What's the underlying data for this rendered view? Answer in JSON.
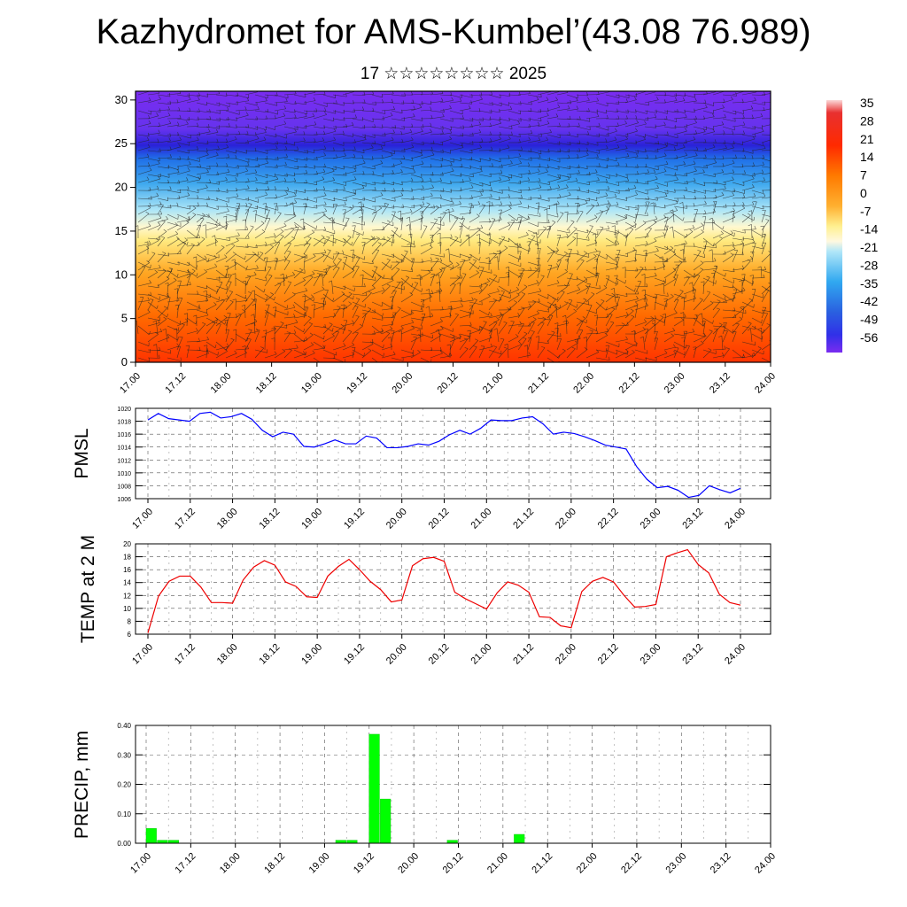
{
  "header": {
    "title": "Kazhydromet for AMS-Kumbel’(43.08 76.989)",
    "subtitle": "17 ☆☆☆☆☆☆☆☆ 2025"
  },
  "chart_data": [
    {
      "type": "heatmap",
      "title": "",
      "x_ticks": [
        "17.00",
        "17.12",
        "18.00",
        "18.12",
        "19.00",
        "19.12",
        "20.00",
        "20.12",
        "21.00",
        "21.12",
        "22.00",
        "22.12",
        "23.00",
        "23.12",
        "24.00"
      ],
      "y_ticks": [
        "0",
        "5",
        "10",
        "15",
        "20",
        "25",
        "30"
      ],
      "ylim": [
        0,
        31
      ],
      "colorbar_labels": [
        "35",
        "28",
        "21",
        "14",
        "7",
        "0",
        "-7",
        "-14",
        "-21",
        "-28",
        "-35",
        "-42",
        "-49",
        "-56"
      ],
      "colors": {
        "warm_bottom": "#ff3300",
        "orange": "#ff8800",
        "yellow": "#ffee88",
        "pale": "#fff8d0",
        "light_blue": "#aee6f7",
        "mid_blue": "#3399ee",
        "deep_blue": "#2222dd",
        "purple": "#7a2cf0"
      },
      "overlay": "wind barbs"
    },
    {
      "type": "line",
      "ylabel": "PMSL",
      "ylim": [
        1006,
        1020
      ],
      "y_ticks": [
        "1020",
        "1018",
        "1016",
        "1014",
        "1012",
        "1010",
        "1008",
        "1006"
      ],
      "x_ticks": [
        "17.00",
        "17.12",
        "18.00",
        "18.12",
        "19.00",
        "19.12",
        "20.00",
        "20.12",
        "21.00",
        "21.12",
        "22.00",
        "22.12",
        "23.00",
        "23.12",
        "24.00"
      ],
      "color": "#0000ff",
      "values": [
        1018.2,
        1019.2,
        1018.4,
        1018.2,
        1018.0,
        1019.2,
        1019.4,
        1018.5,
        1018.7,
        1019.2,
        1018.3,
        1016.6,
        1015.6,
        1016.3,
        1016.0,
        1014.1,
        1014.0,
        1014.5,
        1015.1,
        1014.5,
        1014.5,
        1015.7,
        1015.4,
        1013.9,
        1013.9,
        1014.1,
        1014.5,
        1014.3,
        1014.9,
        1015.9,
        1016.6,
        1016.0,
        1016.9,
        1018.2,
        1018.1,
        1018.1,
        1018.5,
        1018.7,
        1017.6,
        1016.0,
        1016.3,
        1016.1,
        1015.6,
        1015.0,
        1014.3,
        1014.0,
        1013.7,
        1011.0,
        1009.0,
        1007.7,
        1007.9,
        1007.3,
        1006.2,
        1006.5,
        1008.0,
        1007.4,
        1006.9,
        1007.6
      ]
    },
    {
      "type": "line",
      "ylabel": "TEMP at 2 M",
      "ylim": [
        6,
        20
      ],
      "y_ticks": [
        "20",
        "18",
        "16",
        "14",
        "12",
        "10",
        "8",
        "6"
      ],
      "x_ticks": [
        "17.00",
        "17.12",
        "18.00",
        "18.12",
        "19.00",
        "19.12",
        "20.00",
        "20.12",
        "21.00",
        "21.12",
        "22.00",
        "22.12",
        "23.00",
        "23.12",
        "24.00"
      ],
      "color": "#ee0000",
      "values": [
        6.2,
        11.9,
        14.2,
        15.0,
        15.0,
        13.3,
        10.9,
        10.9,
        10.8,
        14.4,
        16.4,
        17.4,
        16.7,
        14.1,
        13.4,
        11.8,
        11.7,
        15.0,
        16.5,
        17.6,
        16.0,
        14.2,
        12.9,
        11.0,
        11.3,
        16.6,
        17.7,
        17.9,
        17.3,
        12.5,
        11.5,
        10.7,
        9.9,
        12.4,
        14.1,
        13.6,
        12.5,
        8.7,
        8.6,
        7.3,
        7.0,
        12.6,
        14.2,
        14.8,
        14.1,
        12.0,
        10.2,
        10.3,
        10.6,
        18.0,
        18.6,
        19.1,
        16.8,
        15.5,
        12.2,
        10.9,
        10.5
      ]
    },
    {
      "type": "bar",
      "ylabel": "PRECIP, mm",
      "ylim": [
        0,
        0.4
      ],
      "y_ticks": [
        "0.40",
        "0.30",
        "0.20",
        "0.10",
        "0.00"
      ],
      "x_ticks": [
        "17.00",
        "17.12",
        "18.00",
        "18.12",
        "19.00",
        "19.12",
        "20.00",
        "20.12",
        "21.00",
        "21.12",
        "22.00",
        "22.12",
        "23.00",
        "23.12",
        "24.00"
      ],
      "color": "#00ff00",
      "bars": [
        {
          "x": 0,
          "value": 0.05
        },
        {
          "x": 1,
          "value": 0.01
        },
        {
          "x": 2,
          "value": 0.01
        },
        {
          "x": 17,
          "value": 0.01
        },
        {
          "x": 18,
          "value": 0.01
        },
        {
          "x": 20,
          "value": 0.37
        },
        {
          "x": 21,
          "value": 0.15
        },
        {
          "x": 27,
          "value": 0.01
        },
        {
          "x": 33,
          "value": 0.03
        }
      ]
    }
  ]
}
